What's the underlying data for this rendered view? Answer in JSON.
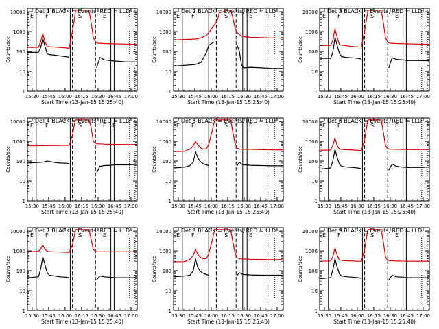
{
  "figure": {
    "x_time_label": "Start Time (13-Jan-15 15:25:40)",
    "ylabel": "Counts/sec",
    "x_tick_labels": [
      "15:30",
      "15:45",
      "16:00",
      "16:15",
      "16:30",
      "16:45",
      "17:00"
    ],
    "y_tick_labels": [
      "1",
      "10",
      "100",
      "1000",
      "10000"
    ],
    "colors": {
      "events": "#000000",
      "lld": "#e00000"
    }
  },
  "chart_data": [
    {
      "type": "line",
      "title": "Det 1 BLACK = Events, RED = LLD",
      "x_unit": "minutes after 15:25:40",
      "xlim": [
        0,
        100
      ],
      "ylim": [
        1,
        15000
      ],
      "yscale": "log",
      "flags": [
        "E",
        "F",
        "S",
        "E"
      ],
      "markers": {
        "solid": [
          8,
          39,
          76,
          79
        ],
        "dashed": [
          41,
          62
        ],
        "dotted": [
          93,
          98
        ]
      },
      "series": [
        {
          "name": "Events",
          "x": [
            0,
            10,
            12,
            14,
            16,
            18,
            20,
            25,
            30,
            35,
            38,
            62,
            63,
            66,
            70,
            75,
            80,
            90,
            100
          ],
          "y": [
            90,
            90,
            150,
            450,
            180,
            75,
            70,
            65,
            60,
            55,
            52,
            null,
            15,
            50,
            38,
            35,
            33,
            30,
            30
          ]
        },
        {
          "name": "LLD",
          "x": [
            0,
            10,
            12,
            14,
            16,
            18,
            22,
            30,
            35,
            38,
            41,
            43,
            44,
            56,
            58,
            60,
            62,
            64,
            70,
            80,
            90,
            100
          ],
          "y": [
            160,
            160,
            300,
            800,
            300,
            180,
            170,
            160,
            150,
            145,
            1000,
            5000,
            12000,
            12000,
            3000,
            500,
            300,
            260,
            250,
            240,
            235,
            230
          ]
        }
      ]
    },
    {
      "type": "line",
      "title": "Det 2 BLACK = Events, RED = LLD",
      "x_unit": "minutes after 15:25:40",
      "xlim": [
        0,
        100
      ],
      "ylim": [
        1,
        15000
      ],
      "yscale": "log",
      "flags": [
        "E",
        "F",
        "S",
        "E"
      ],
      "markers": {
        "solid": [
          8,
          32,
          63,
          67
        ],
        "dashed": [
          39,
          57
        ],
        "dotted": [
          86,
          92
        ]
      },
      "series": [
        {
          "name": "Events",
          "x": [
            0,
            10,
            20,
            25,
            30,
            32,
            36,
            38,
            57,
            58,
            60,
            62,
            64,
            70,
            80,
            90,
            100
          ],
          "y": [
            18,
            20,
            22,
            28,
            90,
            200,
            280,
            300,
            null,
            200,
            100,
            20,
            15,
            16,
            15,
            14,
            14
          ]
        },
        {
          "name": "LLD",
          "x": [
            0,
            10,
            20,
            25,
            30,
            32,
            34,
            36,
            38,
            40,
            42,
            50,
            52,
            54,
            56,
            58,
            60,
            62,
            64,
            70,
            80,
            90,
            100
          ],
          "y": [
            380,
            400,
            420,
            480,
            650,
            900,
            1200,
            1800,
            2500,
            4000,
            9000,
            12000,
            12000,
            5000,
            1500,
            900,
            700,
            600,
            550,
            520,
            500,
            480,
            470
          ]
        }
      ]
    },
    {
      "type": "line",
      "title": "Det 3 BLACK = Events, RED = LLD",
      "x_unit": "minutes after 15:25:40",
      "xlim": [
        0,
        100
      ],
      "ylim": [
        1,
        15000
      ],
      "yscale": "log",
      "flags": [
        "E",
        "F",
        "S",
        "E"
      ],
      "markers": {
        "solid": [
          8,
          39,
          76,
          79
        ],
        "dashed": [
          41,
          62
        ],
        "dotted": [
          93,
          98
        ]
      },
      "series": [
        {
          "name": "Events",
          "x": [
            0,
            10,
            12,
            14,
            16,
            18,
            20,
            25,
            30,
            35,
            38,
            62,
            63,
            66,
            70,
            75,
            80,
            90,
            100
          ],
          "y": [
            45,
            45,
            90,
            500,
            200,
            80,
            55,
            50,
            48,
            45,
            42,
            null,
            15,
            48,
            40,
            38,
            35,
            35,
            34
          ]
        },
        {
          "name": "LLD",
          "x": [
            0,
            10,
            12,
            14,
            16,
            18,
            22,
            30,
            35,
            38,
            41,
            43,
            44,
            56,
            58,
            60,
            62,
            64,
            70,
            80,
            90,
            100
          ],
          "y": [
            200,
            200,
            350,
            1400,
            500,
            220,
            200,
            180,
            170,
            165,
            1100,
            5000,
            12000,
            12000,
            3000,
            500,
            300,
            260,
            250,
            240,
            235,
            230
          ]
        }
      ]
    },
    {
      "type": "line",
      "title": "Det 4 BLACK = Events, RED = LLD",
      "x_unit": "minutes after 15:25:40",
      "xlim": [
        0,
        100
      ],
      "ylim": [
        1,
        15000
      ],
      "yscale": "log",
      "flags": [
        "E",
        "F",
        "S",
        "F",
        "E"
      ],
      "markers": {
        "solid": [
          8,
          39,
          76,
          79
        ],
        "dashed": [
          41,
          62
        ],
        "dotted": [
          93,
          98
        ]
      },
      "series": [
        {
          "name": "Events",
          "x": [
            0,
            10,
            15,
            18,
            20,
            25,
            30,
            35,
            38,
            62,
            63,
            66,
            70,
            75,
            80,
            90,
            100
          ],
          "y": [
            80,
            85,
            90,
            100,
            95,
            85,
            80,
            78,
            75,
            null,
            25,
            55,
            60,
            62,
            65,
            65,
            68
          ]
        },
        {
          "name": "LLD",
          "x": [
            0,
            10,
            20,
            30,
            38,
            41,
            43,
            44,
            56,
            58,
            60,
            62,
            64,
            70,
            80,
            90,
            100
          ],
          "y": [
            600,
            600,
            610,
            620,
            630,
            2000,
            8000,
            12000,
            12000,
            5000,
            1000,
            800,
            750,
            720,
            700,
            690,
            680
          ]
        }
      ]
    },
    {
      "type": "line",
      "title": "Det 5 BLACK = Events, RED = LLD",
      "x_unit": "minutes after 15:25:40",
      "xlim": [
        0,
        100
      ],
      "ylim": [
        1,
        15000
      ],
      "yscale": "log",
      "flags": [
        "E",
        "F",
        "S",
        "E"
      ],
      "markers": {
        "solid": [
          8,
          32,
          63,
          67
        ],
        "dashed": [
          39,
          57
        ],
        "dotted": [
          86,
          92
        ]
      },
      "series": [
        {
          "name": "Events",
          "x": [
            0,
            10,
            15,
            18,
            20,
            22,
            24,
            26,
            28,
            30,
            32,
            57,
            58,
            60,
            62,
            64,
            70,
            80,
            90,
            100
          ],
          "y": [
            45,
            50,
            60,
            90,
            300,
            150,
            100,
            80,
            70,
            65,
            60,
            null,
            60,
            90,
            70,
            65,
            62,
            60,
            58,
            58
          ]
        },
        {
          "name": "LLD",
          "x": [
            0,
            10,
            15,
            18,
            20,
            22,
            24,
            26,
            28,
            30,
            32,
            35,
            37,
            38,
            52,
            54,
            56,
            58,
            60,
            70,
            80,
            90,
            100
          ],
          "y": [
            300,
            310,
            400,
            600,
            1000,
            700,
            500,
            420,
            400,
            420,
            700,
            3000,
            9000,
            12000,
            12000,
            3000,
            800,
            450,
            400,
            390,
            380,
            370,
            370
          ]
        }
      ]
    },
    {
      "type": "line",
      "title": "Det 6 BLACK = Events, RED = LLD",
      "x_unit": "minutes after 15:25:40",
      "xlim": [
        0,
        100
      ],
      "ylim": [
        1,
        15000
      ],
      "yscale": "log",
      "flags": [
        "E",
        "F",
        "S",
        "E"
      ],
      "markers": {
        "solid": [
          8,
          39,
          76,
          79
        ],
        "dashed": [
          41,
          62
        ],
        "dotted": [
          93,
          98
        ]
      },
      "series": [
        {
          "name": "Events",
          "x": [
            0,
            10,
            12,
            14,
            16,
            18,
            20,
            25,
            30,
            35,
            38,
            62,
            63,
            66,
            70,
            75,
            80,
            90,
            100
          ],
          "y": [
            40,
            45,
            100,
            400,
            150,
            70,
            55,
            50,
            48,
            45,
            42,
            null,
            35,
            70,
            55,
            50,
            48,
            48,
            50
          ]
        },
        {
          "name": "LLD",
          "x": [
            0,
            10,
            12,
            14,
            16,
            18,
            22,
            30,
            35,
            38,
            41,
            43,
            44,
            56,
            58,
            60,
            62,
            64,
            70,
            80,
            90,
            100
          ],
          "y": [
            350,
            360,
            600,
            1500,
            600,
            400,
            380,
            360,
            350,
            340,
            1200,
            6000,
            12000,
            12000,
            3000,
            600,
            420,
            400,
            390,
            380,
            380,
            380
          ]
        }
      ]
    },
    {
      "type": "line",
      "title": "Det 7 BLACK = Events, RED = LLD",
      "x_unit": "minutes after 15:25:40",
      "xlim": [
        0,
        100
      ],
      "ylim": [
        1,
        15000
      ],
      "yscale": "log",
      "flags": [
        "E",
        "F",
        "S",
        "E"
      ],
      "markers": {
        "solid": [
          8,
          39,
          76,
          79
        ],
        "dashed": [
          41,
          62
        ],
        "dotted": [
          93,
          98
        ]
      },
      "series": [
        {
          "name": "Events",
          "x": [
            0,
            10,
            12,
            14,
            16,
            18,
            20,
            25,
            30,
            35,
            38,
            62,
            63,
            66,
            70,
            75,
            80,
            90,
            100
          ],
          "y": [
            45,
            50,
            120,
            500,
            200,
            80,
            60,
            55,
            50,
            48,
            45,
            null,
            35,
            55,
            50,
            48,
            45,
            45,
            45
          ]
        },
        {
          "name": "LLD",
          "x": [
            0,
            10,
            12,
            14,
            16,
            18,
            22,
            30,
            35,
            38,
            41,
            43,
            44,
            56,
            58,
            60,
            62,
            64,
            70,
            80,
            90,
            100
          ],
          "y": [
            900,
            950,
            1200,
            2000,
            1200,
            950,
            900,
            880,
            860,
            850,
            2000,
            7000,
            12000,
            12000,
            4000,
            1200,
            950,
            900,
            900,
            900,
            900,
            900
          ]
        }
      ]
    },
    {
      "type": "line",
      "title": "Det 8 BLACK = Events, RED = LLD",
      "x_unit": "minutes after 15:25:40",
      "xlim": [
        0,
        100
      ],
      "ylim": [
        1,
        15000
      ],
      "yscale": "log",
      "flags": [
        "E",
        "F",
        "S",
        "E"
      ],
      "markers": {
        "solid": [
          8,
          32,
          63,
          67
        ],
        "dashed": [
          39,
          57
        ],
        "dotted": [
          86,
          92
        ]
      },
      "series": [
        {
          "name": "Events",
          "x": [
            0,
            10,
            15,
            18,
            20,
            22,
            24,
            26,
            28,
            30,
            32,
            57,
            58,
            60,
            62,
            64,
            70,
            80,
            90,
            100
          ],
          "y": [
            50,
            55,
            60,
            100,
            400,
            150,
            100,
            80,
            70,
            65,
            60,
            null,
            60,
            80,
            70,
            65,
            62,
            60,
            60,
            60
          ]
        },
        {
          "name": "LLD",
          "x": [
            0,
            10,
            15,
            18,
            20,
            22,
            24,
            26,
            28,
            30,
            32,
            35,
            37,
            38,
            52,
            54,
            56,
            58,
            60,
            70,
            80,
            90,
            100
          ],
          "y": [
            280,
            290,
            380,
            600,
            1200,
            700,
            500,
            420,
            400,
            420,
            700,
            3000,
            9000,
            12000,
            12000,
            3000,
            800,
            450,
            400,
            380,
            370,
            360,
            360
          ]
        }
      ]
    },
    {
      "type": "line",
      "title": "Det 9 BLACK = Events, RED = LLD",
      "x_unit": "minutes after 15:25:40",
      "xlim": [
        0,
        100
      ],
      "ylim": [
        1,
        15000
      ],
      "yscale": "log",
      "flags": [
        "E",
        "F",
        "S",
        "E"
      ],
      "markers": {
        "solid": [
          8,
          39,
          76,
          79
        ],
        "dashed": [
          41,
          62
        ],
        "dotted": [
          93,
          98
        ]
      },
      "series": [
        {
          "name": "Events",
          "x": [
            0,
            10,
            12,
            14,
            16,
            18,
            20,
            25,
            30,
            35,
            38,
            62,
            63,
            66,
            70,
            75,
            80,
            90,
            100
          ],
          "y": [
            40,
            45,
            110,
            400,
            150,
            70,
            55,
            50,
            48,
            45,
            42,
            null,
            35,
            60,
            50,
            48,
            45,
            45,
            45
          ]
        },
        {
          "name": "LLD",
          "x": [
            0,
            10,
            12,
            14,
            16,
            18,
            22,
            30,
            35,
            38,
            41,
            43,
            44,
            56,
            58,
            60,
            62,
            64,
            70,
            80,
            90,
            100
          ],
          "y": [
            300,
            310,
            500,
            1400,
            600,
            350,
            320,
            310,
            300,
            300,
            1200,
            6000,
            12000,
            12000,
            3000,
            500,
            330,
            320,
            310,
            300,
            300,
            300
          ]
        }
      ]
    }
  ]
}
